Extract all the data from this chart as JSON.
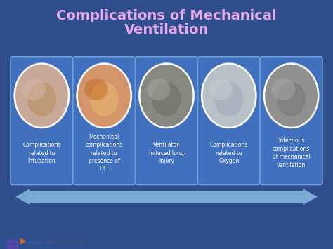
{
  "title_line1": "Complications of Mechanical",
  "title_line2": "Ventilation",
  "title_color": "#E8AAEE",
  "background_color": "#2E4E8E",
  "card_bg_color": "#4070BE",
  "card_border_color": "#6EA0D8",
  "card_text_color": "#FFFFFF",
  "arrow_color": "#7AAAD4",
  "footer_bg": "#FFFFFF",
  "footer_text1": "Middle East",
  "footer_text2": " Critical Care Assembly",
  "footer_color1": "#4455AA",
  "footer_color2": "#555555",
  "logo_dot_color": "#5544AA",
  "logo_arrow_color": "#CC6622",
  "cards": [
    "Complications\nrelated to\nIntubation",
    "Mechanical\ncomplications\nrelated to\npresence of\nETT",
    "Ventilator\ninduced lung\ninjury",
    "Complications\nrelated to\nOxygen",
    "Infectious\ncomplications\nof mechanical\nventilation"
  ],
  "img_colors": [
    [
      "#C8A898",
      "#B89060",
      "#D4B8A8"
    ],
    [
      "#D4956A",
      "#E8B870",
      "#C06820"
    ],
    [
      "#888880",
      "#707068",
      "#A8A8A0"
    ],
    [
      "#B8C0C8",
      "#A0ACBC",
      "#C8CCD4"
    ],
    [
      "#909090",
      "#787878",
      "#A8A8A8"
    ]
  ]
}
